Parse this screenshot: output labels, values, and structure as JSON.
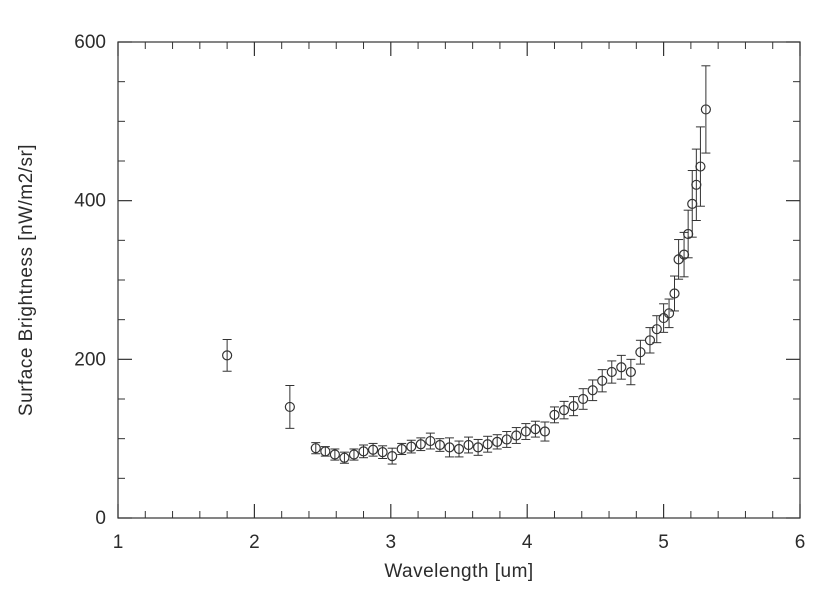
{
  "figure": {
    "background": "#ffffff",
    "axis_color": "#333333",
    "marker_color": "#333333"
  },
  "chart_data": {
    "type": "scatter",
    "title": "",
    "xlabel": "Wavelength [um]",
    "ylabel": "Surface Brightness [nW/m2/sr]",
    "xlim": [
      1,
      6
    ],
    "ylim": [
      0,
      600
    ],
    "x_ticks": [
      1,
      2,
      3,
      4,
      5,
      6
    ],
    "y_ticks": [
      0,
      200,
      400,
      600
    ],
    "x_minor_step": 0.2,
    "y_minor_step": 50,
    "marker": "open-circle",
    "error_bars": true,
    "grid": false,
    "legend": "none",
    "series": [
      {
        "name": "surface-brightness",
        "x": [
          1.8,
          2.26,
          2.45,
          2.52,
          2.59,
          2.66,
          2.73,
          2.8,
          2.87,
          2.94,
          3.01,
          3.08,
          3.15,
          3.22,
          3.29,
          3.36,
          3.43,
          3.5,
          3.57,
          3.64,
          3.71,
          3.78,
          3.85,
          3.92,
          3.99,
          4.06,
          4.13,
          4.2,
          4.27,
          4.34,
          4.41,
          4.48,
          4.55,
          4.62,
          4.69,
          4.76,
          4.83,
          4.9,
          4.95,
          5.0,
          5.04,
          5.08,
          5.11,
          5.15,
          5.18,
          5.21,
          5.24,
          5.27,
          5.31
        ],
        "y": [
          205,
          140,
          88,
          84,
          80,
          76,
          80,
          84,
          86,
          83,
          78,
          87,
          90,
          93,
          97,
          92,
          89,
          87,
          92,
          89,
          93,
          96,
          99,
          104,
          109,
          112,
          109,
          130,
          136,
          141,
          150,
          161,
          173,
          184,
          190,
          184,
          209,
          224,
          238,
          252,
          258,
          283,
          326,
          332,
          358,
          396,
          420,
          443,
          515
        ],
        "yerr": [
          20,
          27,
          7,
          6,
          7,
          7,
          7,
          8,
          8,
          8,
          10,
          7,
          8,
          8,
          10,
          8,
          12,
          10,
          10,
          10,
          10,
          9,
          10,
          10,
          10,
          10,
          12,
          10,
          11,
          12,
          13,
          13,
          14,
          14,
          15,
          16,
          15,
          16,
          17,
          18,
          18,
          22,
          25,
          28,
          30,
          42,
          45,
          50,
          55
        ]
      }
    ]
  }
}
